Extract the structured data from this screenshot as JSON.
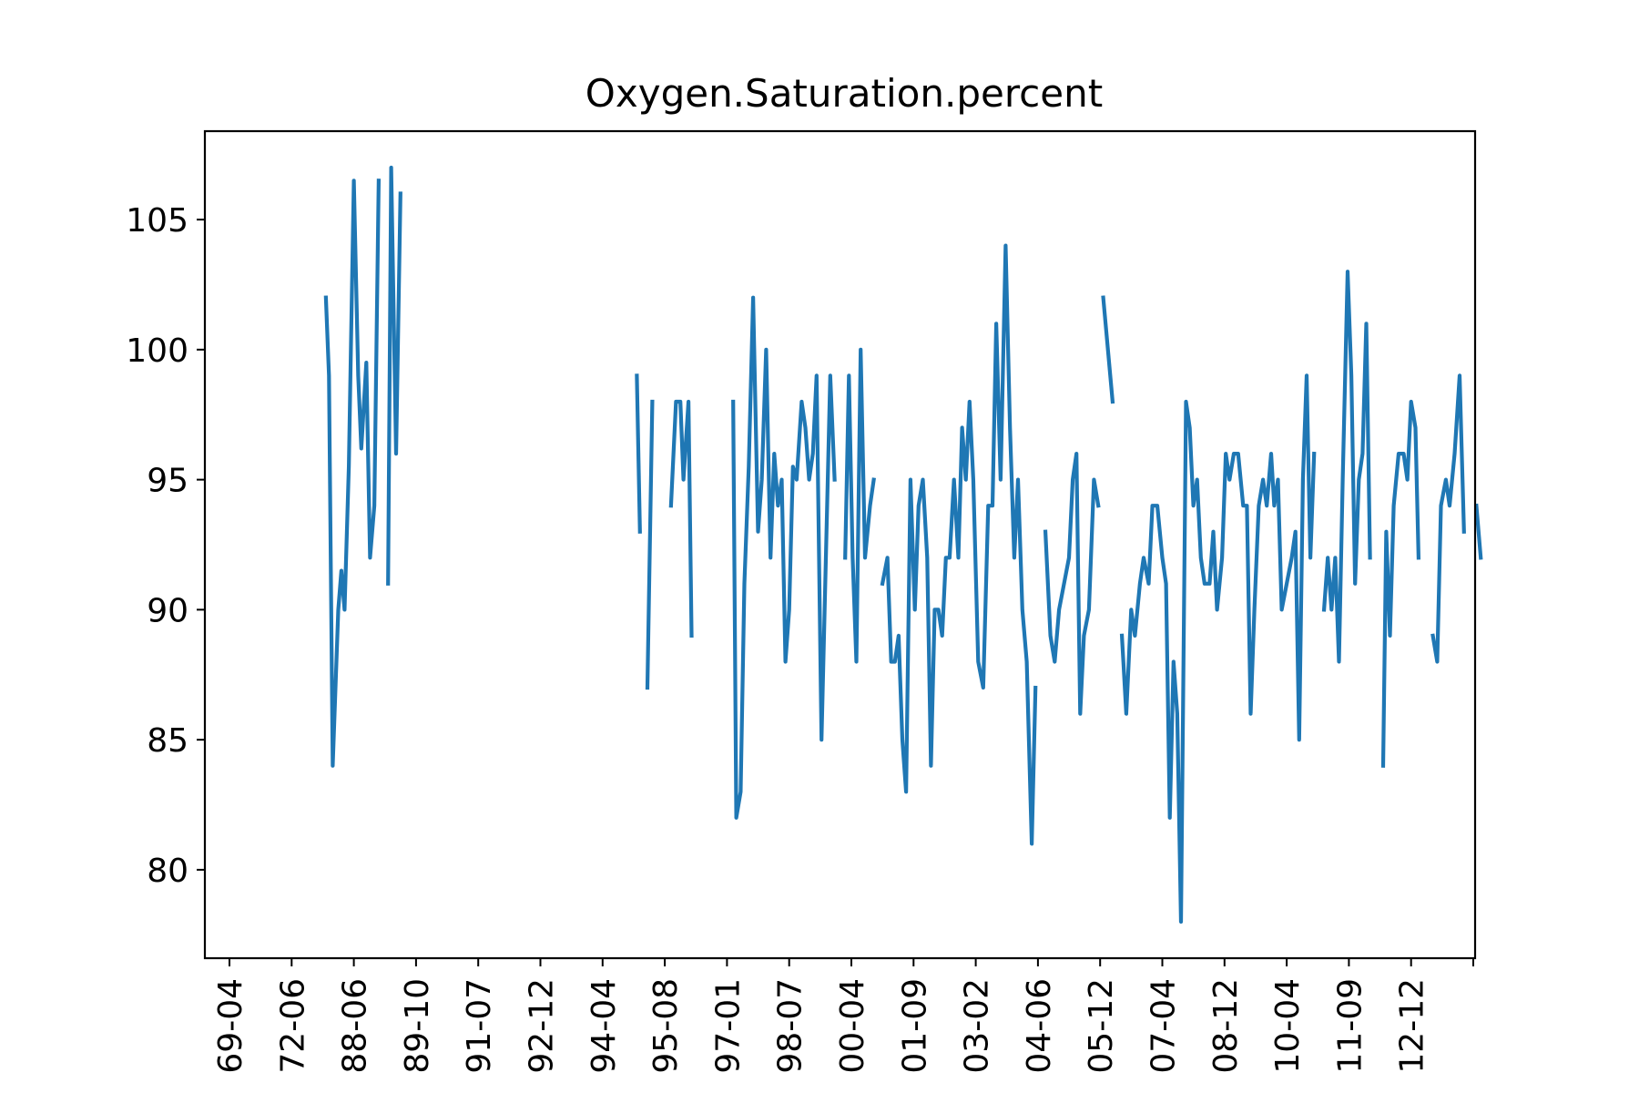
{
  "chart_data": {
    "type": "line",
    "title": "Oxygen.Saturation.percent",
    "xlabel": "",
    "ylabel": "",
    "ylim": [
      76.6,
      108.4
    ],
    "y_ticks": [
      80,
      85,
      90,
      95,
      100,
      105
    ],
    "x_tick_labels": [
      "69-04",
      "72-06",
      "88-06",
      "89-10",
      "91-07",
      "92-12",
      "94-04",
      "95-08",
      "97-01",
      "98-07",
      "00-04",
      "01-09",
      "03-02",
      "04-06",
      "05-12",
      "07-04",
      "08-12",
      "10-04",
      "11-09",
      "12-12"
    ],
    "grid": false,
    "legend": "none",
    "series_color": "#1f77b4",
    "series": [
      {
        "segments": [
          [
            [
              1.55,
              102.0
            ],
            [
              1.6,
              99.0
            ],
            [
              1.66,
              84.0
            ],
            [
              1.75,
              90.0
            ],
            [
              1.8,
              91.5
            ],
            [
              1.85,
              90.0
            ],
            [
              1.92,
              95.5
            ],
            [
              2.0,
              106.5
            ],
            [
              2.07,
              99.0
            ],
            [
              2.12,
              96.2
            ],
            [
              2.2,
              99.5
            ],
            [
              2.26,
              92.0
            ],
            [
              2.33,
              94.0
            ],
            [
              2.4,
              106.5
            ]
          ],
          [
            [
              2.55,
              91.0
            ],
            [
              2.6,
              107.0
            ],
            [
              2.68,
              96.0
            ],
            [
              2.75,
              106.0
            ]
          ],
          [
            [
              6.55,
              99.0
            ],
            [
              6.6,
              93.0
            ]
          ],
          [
            [
              6.72,
              87.0
            ],
            [
              6.8,
              98.0
            ]
          ],
          [
            [
              7.1,
              94.0
            ],
            [
              7.18,
              98.0
            ],
            [
              7.25,
              98.0
            ],
            [
              7.3,
              95.0
            ],
            [
              7.38,
              98.0
            ],
            [
              7.43,
              89.0
            ]
          ],
          [
            [
              8.1,
              98.0
            ],
            [
              8.15,
              82.0
            ],
            [
              8.22,
              83.0
            ],
            [
              8.28,
              91.0
            ],
            [
              8.35,
              95.5
            ],
            [
              8.42,
              102.0
            ],
            [
              8.5,
              93.0
            ],
            [
              8.56,
              95.0
            ],
            [
              8.63,
              100.0
            ],
            [
              8.7,
              92.0
            ],
            [
              8.76,
              96.0
            ],
            [
              8.82,
              94.0
            ],
            [
              8.88,
              95.0
            ],
            [
              8.94,
              88.0
            ],
            [
              9.0,
              90.0
            ],
            [
              9.06,
              95.5
            ],
            [
              9.12,
              95.0
            ],
            [
              9.2,
              98.0
            ],
            [
              9.26,
              97.0
            ],
            [
              9.32,
              95.0
            ],
            [
              9.38,
              96.0
            ],
            [
              9.44,
              99.0
            ],
            [
              9.52,
              85.0
            ],
            [
              9.6,
              93.0
            ],
            [
              9.66,
              99.0
            ],
            [
              9.73,
              95.0
            ]
          ],
          [
            [
              9.9,
              92.0
            ],
            [
              9.96,
              99.0
            ],
            [
              10.02,
              92.0
            ],
            [
              10.08,
              88.0
            ],
            [
              10.15,
              100.0
            ],
            [
              10.22,
              92.0
            ],
            [
              10.3,
              94.0
            ],
            [
              10.36,
              95.0
            ]
          ],
          [
            [
              10.5,
              91.0
            ],
            [
              10.58,
              92.0
            ],
            [
              10.64,
              88.0
            ],
            [
              10.7,
              88.0
            ],
            [
              10.76,
              89.0
            ],
            [
              10.82,
              85.0
            ],
            [
              10.88,
              83.0
            ],
            [
              10.95,
              95.0
            ],
            [
              11.02,
              90.0
            ],
            [
              11.08,
              94.0
            ],
            [
              11.15,
              95.0
            ],
            [
              11.22,
              92.0
            ],
            [
              11.28,
              84.0
            ],
            [
              11.34,
              90.0
            ],
            [
              11.4,
              90.0
            ],
            [
              11.46,
              89.0
            ],
            [
              11.52,
              92.0
            ],
            [
              11.58,
              92.0
            ],
            [
              11.65,
              95.0
            ],
            [
              11.72,
              92.0
            ],
            [
              11.78,
              97.0
            ],
            [
              11.84,
              95.0
            ],
            [
              11.9,
              98.0
            ],
            [
              11.96,
              95.0
            ],
            [
              12.04,
              88.0
            ],
            [
              12.12,
              87.0
            ],
            [
              12.2,
              94.0
            ],
            [
              12.27,
              94.0
            ],
            [
              12.33,
              101.0
            ],
            [
              12.4,
              95.0
            ],
            [
              12.48,
              104.0
            ],
            [
              12.55,
              97.0
            ],
            [
              12.62,
              92.0
            ],
            [
              12.68,
              95.0
            ],
            [
              12.75,
              90.0
            ],
            [
              12.82,
              88.0
            ],
            [
              12.9,
              81.0
            ],
            [
              12.96,
              87.0
            ]
          ],
          [
            [
              13.12,
              93.0
            ],
            [
              13.2,
              89.0
            ],
            [
              13.27,
              88.0
            ],
            [
              13.34,
              90.0
            ],
            [
              13.5,
              92.0
            ],
            [
              13.56,
              95.0
            ],
            [
              13.62,
              96.0
            ],
            [
              13.68,
              86.0
            ],
            [
              13.74,
              89.0
            ],
            [
              13.82,
              90.0
            ],
            [
              13.9,
              95.0
            ],
            [
              13.97,
              94.0
            ]
          ],
          [
            [
              14.05,
              102.0
            ],
            [
              14.2,
              98.0
            ]
          ],
          [
            [
              14.35,
              89.0
            ],
            [
              14.42,
              86.0
            ],
            [
              14.5,
              90.0
            ],
            [
              14.56,
              89.0
            ],
            [
              14.64,
              91.0
            ],
            [
              14.7,
              92.0
            ],
            [
              14.78,
              91.0
            ],
            [
              14.84,
              94.0
            ],
            [
              14.92,
              94.0
            ],
            [
              15.0,
              92.0
            ],
            [
              15.06,
              91.0
            ],
            [
              15.12,
              82.0
            ],
            [
              15.18,
              88.0
            ],
            [
              15.24,
              86.0
            ],
            [
              15.3,
              78.0
            ],
            [
              15.38,
              98.0
            ],
            [
              15.44,
              97.0
            ],
            [
              15.5,
              94.0
            ],
            [
              15.56,
              95.0
            ],
            [
              15.62,
              92.0
            ],
            [
              15.68,
              91.0
            ],
            [
              15.76,
              91.0
            ],
            [
              15.82,
              93.0
            ],
            [
              15.88,
              90.0
            ],
            [
              15.96,
              92.0
            ],
            [
              16.02,
              96.0
            ],
            [
              16.08,
              95.0
            ],
            [
              16.15,
              96.0
            ],
            [
              16.22,
              96.0
            ],
            [
              16.3,
              94.0
            ],
            [
              16.36,
              94.0
            ],
            [
              16.42,
              86.0
            ],
            [
              16.48,
              90.0
            ],
            [
              16.55,
              94.0
            ],
            [
              16.62,
              95.0
            ],
            [
              16.68,
              94.0
            ],
            [
              16.75,
              96.0
            ],
            [
              16.8,
              94.0
            ],
            [
              16.86,
              95.0
            ],
            [
              16.92,
              90.0
            ],
            [
              17.0,
              91.0
            ],
            [
              17.08,
              92.0
            ],
            [
              17.14,
              93.0
            ],
            [
              17.2,
              85.0
            ],
            [
              17.26,
              95.0
            ],
            [
              17.32,
              99.0
            ],
            [
              17.38,
              92.0
            ],
            [
              17.44,
              96.0
            ]
          ],
          [
            [
              17.6,
              90.0
            ],
            [
              17.66,
              92.0
            ],
            [
              17.72,
              90.0
            ],
            [
              17.78,
              92.0
            ],
            [
              17.84,
              88.0
            ],
            [
              17.9,
              95.0
            ],
            [
              17.98,
              103.0
            ],
            [
              18.04,
              99.0
            ],
            [
              18.1,
              91.0
            ],
            [
              18.16,
              95.0
            ],
            [
              18.22,
              96.0
            ],
            [
              18.28,
              101.0
            ],
            [
              18.34,
              92.0
            ]
          ],
          [
            [
              18.55,
              84.0
            ],
            [
              18.6,
              93.0
            ],
            [
              18.66,
              89.0
            ],
            [
              18.72,
              94.0
            ],
            [
              18.8,
              96.0
            ],
            [
              18.88,
              96.0
            ],
            [
              18.94,
              95.0
            ],
            [
              19.0,
              98.0
            ],
            [
              19.07,
              97.0
            ],
            [
              19.12,
              92.0
            ]
          ],
          [
            [
              19.35,
              89.0
            ],
            [
              19.42,
              88.0
            ],
            [
              19.48,
              94.0
            ],
            [
              19.56,
              95.0
            ],
            [
              19.62,
              94.0
            ],
            [
              19.7,
              96.0
            ],
            [
              19.78,
              99.0
            ],
            [
              19.85,
              93.0
            ]
          ],
          [
            [
              20.05,
              94.0
            ],
            [
              20.12,
              92.0
            ]
          ]
        ]
      }
    ]
  }
}
